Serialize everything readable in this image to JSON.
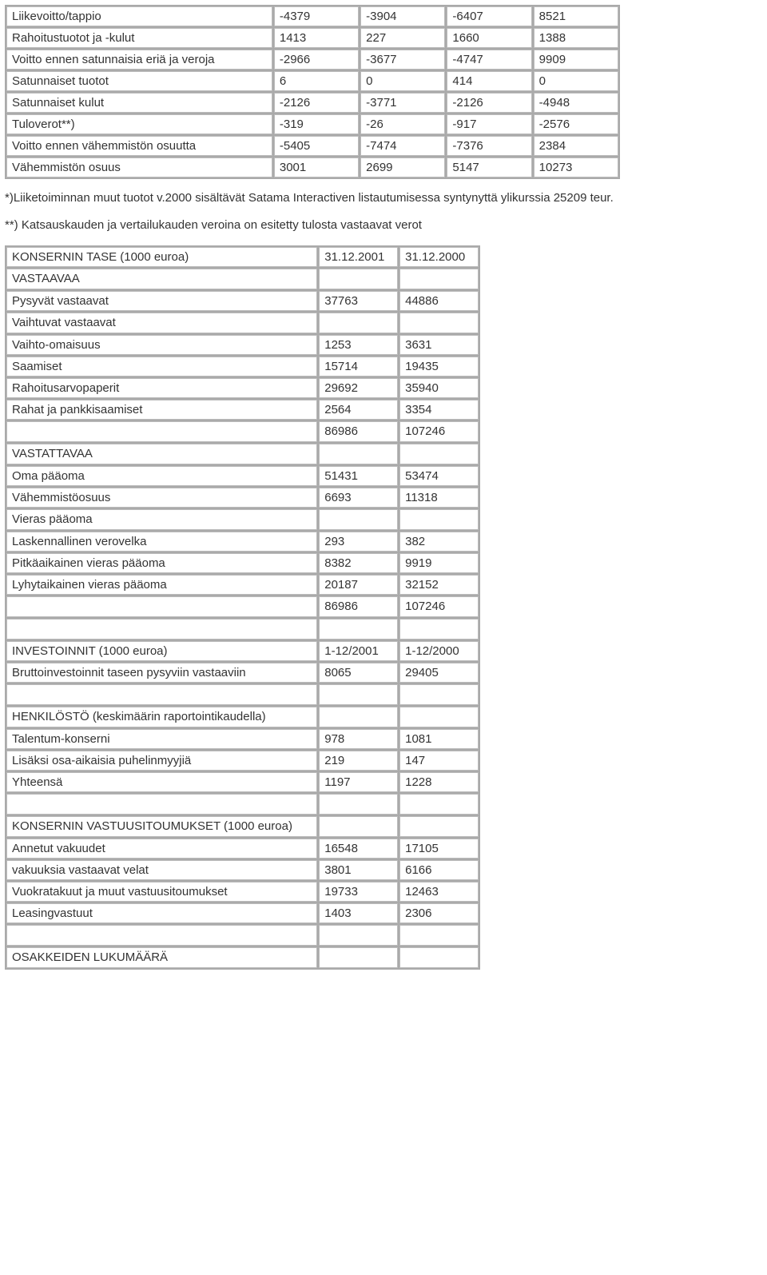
{
  "income": {
    "rows": [
      {
        "label": "Liikevoitto/tappio",
        "c1": "-4379",
        "c2": "-3904",
        "c3": "-6407",
        "c4": "8521"
      },
      {
        "label": "Rahoitustuotot ja -kulut",
        "c1": "1413",
        "c2": "227",
        "c3": "1660",
        "c4": "1388"
      },
      {
        "label": "Voitto ennen satunnaisia eriä ja veroja",
        "c1": "-2966",
        "c2": "-3677",
        "c3": "-4747",
        "c4": "9909"
      },
      {
        "label": "Satunnaiset tuotot",
        "c1": "6",
        "c2": "0",
        "c3": "414",
        "c4": "0"
      },
      {
        "label": "Satunnaiset kulut",
        "c1": "-2126",
        "c2": "-3771",
        "c3": "-2126",
        "c4": "-4948"
      },
      {
        "label": "Tuloverot**)",
        "c1": "-319",
        "c2": "-26",
        "c3": "-917",
        "c4": "-2576"
      },
      {
        "label": "Voitto ennen vähemmistön osuutta",
        "c1": "-5405",
        "c2": "-7474",
        "c3": "-7376",
        "c4": "2384"
      },
      {
        "label": "Vähemmistön osuus",
        "c1": "3001",
        "c2": "2699",
        "c3": "5147",
        "c4": "10273"
      }
    ]
  },
  "note1": "*)Liiketoiminnan muut tuotot v.2000 sisältävät Satama Interactiven listautumisessa syntynyttä ylikurssia 25209 teur.",
  "note2": "**) Katsauskauden ja vertailukauden veroina on esitetty tulosta vastaavat verot",
  "balance": {
    "header": {
      "label": "KONSERNIN TASE (1000 euroa)",
      "c1": "31.12.2001",
      "c2": "31.12.2000"
    },
    "rows": [
      {
        "label": "VASTAAVAA",
        "c1": "",
        "c2": ""
      },
      {
        "label": "Pysyvät vastaavat",
        "c1": "37763",
        "c2": "44886"
      },
      {
        "label": "Vaihtuvat vastaavat",
        "c1": "",
        "c2": ""
      },
      {
        "label": "Vaihto-omaisuus",
        "c1": "1253",
        "c2": "3631"
      },
      {
        "label": "Saamiset",
        "c1": "15714",
        "c2": "19435"
      },
      {
        "label": "Rahoitusarvopaperit",
        "c1": "29692",
        "c2": "35940"
      },
      {
        "label": "Rahat ja pankkisaamiset",
        "c1": "2564",
        "c2": "3354"
      },
      {
        "label": "",
        "c1": "86986",
        "c2": "107246"
      },
      {
        "label": "VASTATTAVAA",
        "c1": "",
        "c2": ""
      },
      {
        "label": "Oma pääoma",
        "c1": "51431",
        "c2": "53474"
      },
      {
        "label": "Vähemmistöosuus",
        "c1": "6693",
        "c2": "11318"
      },
      {
        "label": "Vieras pääoma",
        "c1": "",
        "c2": ""
      },
      {
        "label": "Laskennallinen verovelka",
        "c1": "293",
        "c2": "382"
      },
      {
        "label": "Pitkäaikainen vieras pääoma",
        "c1": "8382",
        "c2": "9919"
      },
      {
        "label": "Lyhytaikainen vieras pääoma",
        "c1": "20187",
        "c2": "32152"
      },
      {
        "label": "",
        "c1": "86986",
        "c2": "107246"
      },
      {
        "label": "",
        "c1": "",
        "c2": ""
      },
      {
        "label": "INVESTOINNIT (1000 euroa)",
        "c1": "1-12/2001",
        "c2": "1-12/2000"
      },
      {
        "label": "Bruttoinvestoinnit taseen pysyviin vastaaviin",
        "c1": "8065",
        "c2": "29405"
      },
      {
        "label": "",
        "c1": "",
        "c2": ""
      },
      {
        "label": "HENKILÖSTÖ (keskimäärin raportointikaudella)",
        "c1": "",
        "c2": ""
      },
      {
        "label": "Talentum-konserni",
        "c1": "978",
        "c2": "1081"
      },
      {
        "label": "Lisäksi osa-aikaisia puhelinmyyjiä",
        "c1": "219",
        "c2": "147"
      },
      {
        "label": "Yhteensä",
        "c1": "1197",
        "c2": "1228"
      },
      {
        "label": "",
        "c1": "",
        "c2": ""
      },
      {
        "label": "KONSERNIN VASTUUSITOUMUKSET (1000 euroa)",
        "c1": "",
        "c2": ""
      },
      {
        "label": "Annetut vakuudet",
        "c1": "16548",
        "c2": "17105"
      },
      {
        "label": "vakuuksia vastaavat velat",
        "c1": "3801",
        "c2": "6166"
      },
      {
        "label": "Vuokratakuut ja muut vastuusitoumukset",
        "c1": "19733",
        "c2": "12463"
      },
      {
        "label": "Leasingvastuut",
        "c1": "1403",
        "c2": "2306"
      },
      {
        "label": "",
        "c1": "",
        "c2": ""
      },
      {
        "label": "OSAKKEIDEN LUKUMÄÄRÄ",
        "c1": "",
        "c2": ""
      }
    ]
  }
}
